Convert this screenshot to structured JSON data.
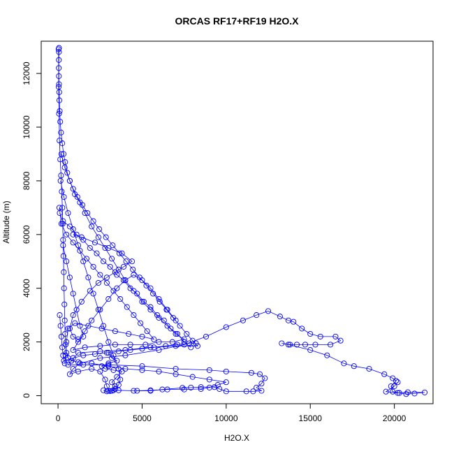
{
  "chart_data": {
    "type": "scatter",
    "title": "ORCAS RF17+RF19 H2O.X",
    "xlabel": "H2O.X",
    "ylabel": "Altitude (m)",
    "xlim": [
      -1000,
      22300
    ],
    "ylim": [
      -300,
      13200
    ],
    "x_ticks": [
      0,
      5000,
      10000,
      15000,
      20000
    ],
    "y_ticks": [
      0,
      2000,
      4000,
      6000,
      8000,
      10000,
      12000
    ],
    "grid": false,
    "legend": "none",
    "marker": "open-circle",
    "connected": true,
    "color": "#0000ff",
    "series": [
      {
        "points": [
          [
            60,
            12950
          ],
          [
            55,
            12800
          ],
          [
            50,
            12500
          ],
          [
            45,
            12200
          ],
          [
            50,
            11900
          ],
          [
            60,
            11600
          ],
          [
            70,
            11300
          ],
          [
            80,
            11000
          ],
          [
            100,
            10600
          ],
          [
            130,
            10200
          ],
          [
            180,
            9800
          ],
          [
            250,
            9400
          ],
          [
            330,
            9000
          ],
          [
            420,
            8700
          ],
          [
            550,
            8300
          ],
          [
            700,
            8000
          ],
          [
            900,
            7700
          ],
          [
            1150,
            7400
          ],
          [
            1450,
            7100
          ],
          [
            1750,
            6800
          ],
          [
            2100,
            6500
          ],
          [
            2450,
            6200
          ],
          [
            2850,
            5900
          ],
          [
            3250,
            5600
          ],
          [
            3650,
            5300
          ],
          [
            4050,
            5000
          ],
          [
            4450,
            4700
          ],
          [
            4850,
            4400
          ],
          [
            5250,
            4100
          ],
          [
            5650,
            3800
          ],
          [
            6050,
            3500
          ],
          [
            6450,
            3200
          ],
          [
            6850,
            2900
          ],
          [
            7250,
            2600
          ],
          [
            7650,
            2300
          ],
          [
            8000,
            2050
          ],
          [
            8300,
            1850
          ],
          [
            7000,
            1850
          ],
          [
            5500,
            1800
          ],
          [
            4000,
            1700
          ],
          [
            2500,
            1650
          ],
          [
            1200,
            1600
          ],
          [
            800,
            1300
          ],
          [
            600,
            1150
          ],
          [
            1500,
            1150
          ],
          [
            3000,
            1150
          ],
          [
            5000,
            1100
          ],
          [
            7000,
            1000
          ],
          [
            9000,
            950
          ],
          [
            10000,
            900
          ],
          [
            11500,
            850
          ],
          [
            12000,
            800
          ],
          [
            12300,
            650
          ],
          [
            12100,
            450
          ],
          [
            11800,
            300
          ],
          [
            12100,
            180
          ],
          [
            11600,
            160
          ],
          [
            11200,
            160
          ],
          [
            10000,
            160
          ],
          [
            9600,
            250
          ],
          [
            9300,
            320
          ],
          [
            8500,
            320
          ],
          [
            7900,
            300
          ],
          [
            7400,
            290
          ],
          [
            6200,
            230
          ],
          [
            5500,
            180
          ],
          [
            4500,
            180
          ],
          [
            3600,
            200
          ],
          [
            3000,
            180
          ],
          [
            2900,
            350
          ],
          [
            2800,
            600
          ],
          [
            2500,
            900
          ],
          [
            2000,
            1000
          ],
          [
            1200,
            900
          ],
          [
            700,
            800
          ],
          [
            900,
            1000
          ],
          [
            1300,
            1200
          ],
          [
            2500,
            1400
          ],
          [
            4000,
            1500
          ],
          [
            6000,
            1700
          ],
          [
            7500,
            1900
          ],
          [
            8800,
            2200
          ],
          [
            10000,
            2550
          ],
          [
            11000,
            2800
          ],
          [
            11800,
            3000
          ],
          [
            12500,
            3150
          ],
          [
            13200,
            2950
          ],
          [
            13700,
            2800
          ],
          [
            14000,
            2750
          ],
          [
            14500,
            2500
          ],
          [
            15000,
            2300
          ],
          [
            15600,
            2200
          ],
          [
            16500,
            2200
          ],
          [
            16800,
            2050
          ],
          [
            16200,
            1900
          ],
          [
            15300,
            1900
          ],
          [
            14700,
            1900
          ],
          [
            14200,
            1900
          ],
          [
            13800,
            1900
          ],
          [
            13300,
            1950
          ],
          [
            13700,
            1900
          ],
          [
            15000,
            1700
          ],
          [
            16000,
            1500
          ],
          [
            17000,
            1200
          ],
          [
            17600,
            1100
          ],
          [
            18500,
            1000
          ],
          [
            19400,
            800
          ],
          [
            19900,
            650
          ],
          [
            20100,
            550
          ],
          [
            19800,
            350
          ],
          [
            19900,
            150
          ],
          [
            20300,
            100
          ],
          [
            20700,
            60
          ],
          [
            21200,
            80
          ],
          [
            21800,
            120
          ],
          [
            20800,
            130
          ],
          [
            20200,
            100
          ],
          [
            19500,
            150
          ],
          [
            20000,
            350
          ],
          [
            20200,
            500
          ]
        ]
      },
      {
        "points": [
          [
            30,
            12900
          ],
          [
            40,
            11500
          ],
          [
            60,
            10500
          ],
          [
            90,
            9500
          ],
          [
            130,
            8800
          ],
          [
            180,
            8200
          ],
          [
            220,
            7600
          ],
          [
            260,
            7000
          ],
          [
            280,
            6400
          ],
          [
            300,
            5800
          ],
          [
            320,
            5200
          ],
          [
            340,
            4600
          ],
          [
            360,
            4000
          ],
          [
            380,
            3400
          ],
          [
            400,
            2800
          ],
          [
            420,
            2300
          ],
          [
            450,
            1900
          ],
          [
            500,
            1600
          ],
          [
            600,
            1400
          ],
          [
            800,
            1300
          ],
          [
            1200,
            1250
          ],
          [
            2000,
            1200
          ],
          [
            3000,
            1100
          ],
          [
            4000,
            1000
          ],
          [
            5000,
            950
          ],
          [
            6000,
            900
          ],
          [
            7000,
            800
          ],
          [
            8000,
            700
          ],
          [
            9000,
            600
          ],
          [
            10000,
            500
          ],
          [
            9500,
            400
          ],
          [
            9000,
            300
          ],
          [
            8500,
            250
          ],
          [
            7500,
            230
          ],
          [
            6500,
            230
          ],
          [
            5500,
            200
          ],
          [
            4700,
            180
          ]
        ]
      },
      {
        "points": [
          [
            200,
            9000
          ],
          [
            400,
            8500
          ],
          [
            700,
            8000
          ],
          [
            1000,
            7500
          ],
          [
            1300,
            7200
          ],
          [
            1600,
            6800
          ],
          [
            2000,
            6300
          ],
          [
            2400,
            5900
          ],
          [
            2800,
            5500
          ],
          [
            3200,
            5100
          ],
          [
            3600,
            4700
          ],
          [
            4000,
            4300
          ],
          [
            4500,
            3900
          ],
          [
            5000,
            3500
          ],
          [
            5500,
            3200
          ],
          [
            6000,
            2900
          ],
          [
            6500,
            2600
          ],
          [
            7000,
            2300
          ],
          [
            7500,
            2100
          ],
          [
            6800,
            2000
          ],
          [
            6000,
            2000
          ],
          [
            5200,
            1900
          ],
          [
            4300,
            1900
          ],
          [
            3400,
            1900
          ],
          [
            2500,
            1850
          ],
          [
            1600,
            1800
          ],
          [
            900,
            1700
          ],
          [
            1200,
            2000
          ],
          [
            1600,
            2400
          ],
          [
            2000,
            2800
          ],
          [
            2500,
            3200
          ],
          [
            3000,
            3600
          ],
          [
            3500,
            4000
          ],
          [
            4000,
            4300
          ],
          [
            4500,
            4500
          ],
          [
            5000,
            4300
          ],
          [
            5500,
            4000
          ],
          [
            6000,
            3600
          ],
          [
            6500,
            3200
          ],
          [
            7000,
            2800
          ]
        ]
      },
      {
        "points": [
          [
            150,
            8000
          ],
          [
            350,
            7400
          ],
          [
            600,
            6800
          ],
          [
            900,
            6200
          ],
          [
            1200,
            5600
          ],
          [
            1500,
            5000
          ],
          [
            1800,
            4400
          ],
          [
            2100,
            3800
          ],
          [
            2400,
            3200
          ],
          [
            2700,
            2600
          ],
          [
            3000,
            2000
          ],
          [
            3300,
            1500
          ],
          [
            3600,
            1000
          ],
          [
            3700,
            600
          ],
          [
            3600,
            400
          ],
          [
            3400,
            250
          ],
          [
            3200,
            180
          ],
          [
            2900,
            160
          ],
          [
            2700,
            200
          ]
        ]
      },
      {
        "points": [
          [
            80,
            7000
          ],
          [
            200,
            6400
          ],
          [
            500,
            6000
          ],
          [
            900,
            5700
          ],
          [
            1300,
            5400
          ],
          [
            1700,
            5100
          ],
          [
            2100,
            4800
          ],
          [
            2500,
            4500
          ],
          [
            2900,
            4200
          ],
          [
            3300,
            3900
          ],
          [
            3700,
            3600
          ],
          [
            4100,
            3300
          ],
          [
            4500,
            3000
          ],
          [
            4900,
            2700
          ],
          [
            5300,
            2400
          ],
          [
            5700,
            2100
          ],
          [
            5000,
            2200
          ],
          [
            4200,
            2300
          ],
          [
            3400,
            2400
          ],
          [
            2600,
            2500
          ],
          [
            1800,
            2600
          ],
          [
            1000,
            2700
          ],
          [
            600,
            2500
          ],
          [
            500,
            2000
          ],
          [
            450,
            1500
          ],
          [
            400,
            1200
          ]
        ]
      },
      {
        "points": [
          [
            100,
            6800
          ],
          [
            300,
            6500
          ],
          [
            700,
            6300
          ],
          [
            1100,
            6000
          ],
          [
            1500,
            5800
          ],
          [
            1900,
            5500
          ],
          [
            2300,
            5300
          ],
          [
            2700,
            5000
          ],
          [
            3100,
            4800
          ],
          [
            3500,
            4500
          ],
          [
            3900,
            4300
          ],
          [
            4300,
            4000
          ],
          [
            4700,
            3800
          ],
          [
            5100,
            3500
          ],
          [
            5500,
            3300
          ],
          [
            5900,
            3000
          ],
          [
            6300,
            2800
          ],
          [
            6700,
            2500
          ],
          [
            7100,
            2300
          ],
          [
            7500,
            2000
          ],
          [
            7900,
            1800
          ]
        ]
      },
      {
        "points": [
          [
            300,
            5600
          ],
          [
            500,
            5000
          ],
          [
            700,
            4400
          ],
          [
            900,
            3800
          ],
          [
            1100,
            3200
          ],
          [
            1300,
            2600
          ],
          [
            1500,
            2200
          ],
          [
            1200,
            2100
          ],
          [
            900,
            2200
          ],
          [
            700,
            2500
          ],
          [
            900,
            3000
          ],
          [
            1400,
            3500
          ],
          [
            1900,
            3900
          ],
          [
            2400,
            4200
          ],
          [
            2900,
            4400
          ],
          [
            3400,
            4600
          ],
          [
            3900,
            4800
          ],
          [
            4400,
            5000
          ],
          [
            3800,
            5300
          ],
          [
            3000,
            5500
          ],
          [
            2200,
            5700
          ],
          [
            1400,
            5900
          ],
          [
            900,
            6000
          ]
        ]
      },
      {
        "points": [
          [
            3000,
            1600
          ],
          [
            3200,
            1400
          ],
          [
            3500,
            1300
          ],
          [
            3000,
            1200
          ],
          [
            2600,
            1100
          ],
          [
            2800,
            1000
          ],
          [
            3300,
            950
          ],
          [
            3800,
            900
          ],
          [
            3500,
            700
          ],
          [
            3200,
            500
          ],
          [
            3400,
            350
          ],
          [
            3300,
            200
          ],
          [
            3100,
            170
          ]
        ]
      },
      {
        "points": [
          [
            100,
            3000
          ],
          [
            150,
            2600
          ],
          [
            200,
            2200
          ],
          [
            250,
            1800
          ],
          [
            300,
            1500
          ],
          [
            350,
            1300
          ],
          [
            900,
            1400
          ],
          [
            1500,
            1500
          ],
          [
            2200,
            1550
          ],
          [
            2900,
            1600
          ],
          [
            3600,
            1650
          ],
          [
            4300,
            1700
          ],
          [
            5000,
            1750
          ],
          [
            5700,
            1800
          ],
          [
            6400,
            1850
          ],
          [
            7100,
            1900
          ],
          [
            7800,
            1950
          ],
          [
            8200,
            1950
          ]
        ]
      }
    ]
  }
}
